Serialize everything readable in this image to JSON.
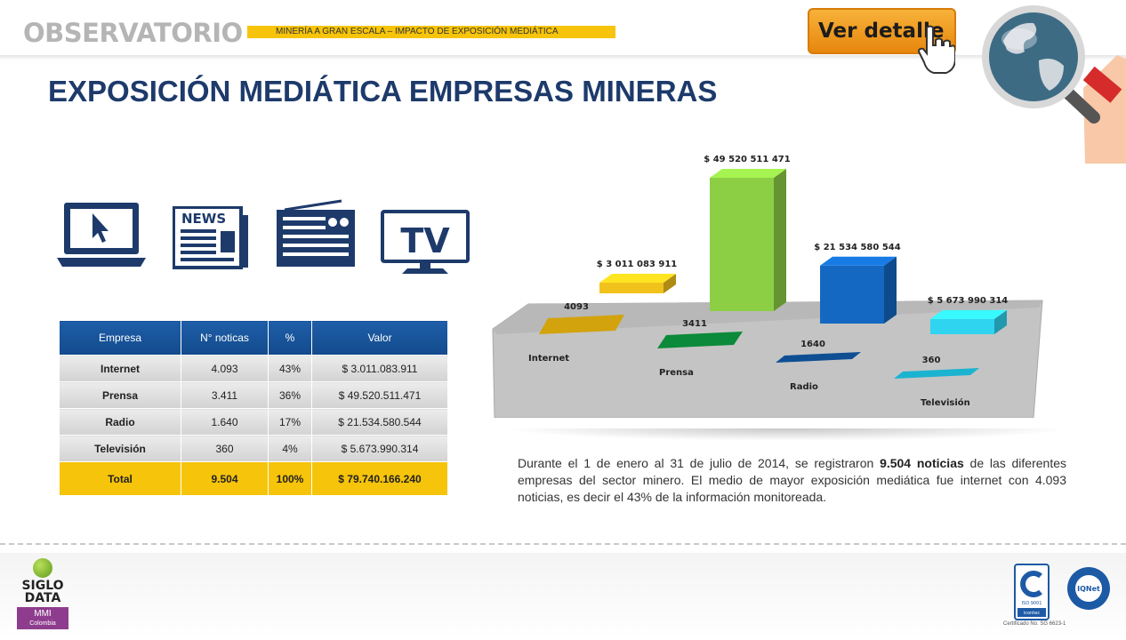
{
  "header": {
    "brand": "OBSERVATORIO",
    "subtitle": "MINERÍA A GRAN ESCALA – IMPACTO DE EXPOSICIÓN MEDIÁTICA",
    "ver_detalle": "Ver detalle"
  },
  "title": "EXPOSICIÓN MEDIÁTICA EMPRESAS MINERAS",
  "media_icons": [
    "laptop-icon",
    "newspaper-icon",
    "radio-icon",
    "tv-icon"
  ],
  "icons_text": {
    "news": "NEWS",
    "tv": "TV"
  },
  "table": {
    "headers": [
      "Empresa",
      "N° noticas",
      "%",
      "Valor"
    ],
    "rows": [
      {
        "empresa": "Internet",
        "noticias": "4.093",
        "pct": "43%",
        "valor": "$ 3.011.083.911"
      },
      {
        "empresa": "Prensa",
        "noticias": "3.411",
        "pct": "36%",
        "valor": "$ 49.520.511.471"
      },
      {
        "empresa": "Radio",
        "noticias": "1.640",
        "pct": "17%",
        "valor": "$ 21.534.580.544"
      },
      {
        "empresa": "Televisión",
        "noticias": "360",
        "pct": "4%",
        "valor": "$ 5.673.990.314"
      }
    ],
    "total": {
      "empresa": "Total",
      "noticias": "9.504",
      "pct": "100%",
      "valor": "$ 79.740.166.240"
    }
  },
  "chart_data": {
    "type": "bar",
    "categories": [
      "Internet",
      "Prensa",
      "Radio",
      "Televisión"
    ],
    "series": [
      {
        "values": [
          4093,
          3411,
          1640,
          360
        ],
        "labels": [
          "4093",
          "3411",
          "1640",
          "360"
        ]
      },
      {
        "values": [
          3011083911,
          49520511471,
          21534580544,
          5673990314
        ],
        "labels": [
          "$ 3 011 083 911",
          "$ 49 520 511 471",
          "$ 21 534 580 544",
          "$ 5 673 990 314"
        ]
      }
    ],
    "colors_back": [
      "#f2c21c",
      "#8ccf45",
      "#1468c2",
      "#2fd4f0"
    ],
    "colors_front": [
      "#d2a30c",
      "#0a8a3a",
      "#0e4f93",
      "#1ab3d0"
    ]
  },
  "description": {
    "part1": "Durante el 1 de enero al 31 de julio de 2014, se registraron ",
    "bold": "9.504 noticias",
    "part2": " de las diferentes empresas del sector minero. El medio de mayor exposición mediática fue internet con 4.093 noticias, es decir el 43% de la información monitoreada."
  },
  "footer": {
    "logo_line1": "SIGLO",
    "logo_line2": "DATA",
    "logo_mmi": "MMI",
    "logo_country": "Colombia",
    "cert_iso": "ISO 9001",
    "cert_org": "icontec",
    "cert_iqnet": "IQNet",
    "cert_number": "Certificado No. SG 6623-1"
  }
}
